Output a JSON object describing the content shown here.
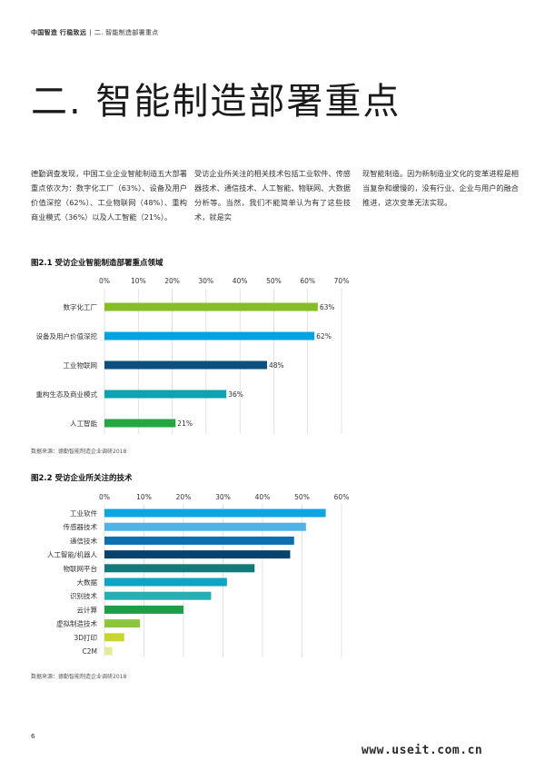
{
  "header": {
    "report": "中国智造 行稳致远",
    "separator": "|",
    "section": "二. 智能制造部署重点"
  },
  "title": "二. 智能制造部署重点",
  "paragraphs": [
    "德勤调查发现，中国工业企业智能制造五大部署重点依次为：数字化工厂（63%）、设备及用户价值深挖（62%）、工业物联网（48%）、重构商业模式（36%）以及人工智能（21%）。",
    "受访企业所关注的相关技术包括工业软件、传感器技术、通信技术、人工智能、物联网、大数据分析等。当然，我们不能简单认为有了这些技术，就是实",
    "现智能制造。因为新制造业文化的变革进程是相当复杂和缓慢的，没有行业、企业与用户的融合推进，这次变革无法实现。"
  ],
  "figures": [
    {
      "title": "图2.1 受访企业智能制造部署重点领域",
      "source": "数据来源：德勤智能制造企业调研2018"
    },
    {
      "title": "图2.2 受访企业所关注的技术",
      "source": "数据来源：德勤智能制造企业调研2018"
    }
  ],
  "chart_data": [
    {
      "type": "bar",
      "orientation": "horizontal",
      "title": "图2.1 受访企业智能制造部署重点领域",
      "categories": [
        "数字化工厂",
        "设备及用户价值深挖",
        "工业物联网",
        "重构生态及商业模式",
        "人工智能"
      ],
      "values": [
        63,
        62,
        48,
        36,
        21
      ],
      "value_labels": [
        "63%",
        "62%",
        "48%",
        "36%",
        "21%"
      ],
      "colors": [
        "#86bc25",
        "#00a3e0",
        "#0b4f7e",
        "#0fa3b1",
        "#26a641"
      ],
      "xlim": [
        0,
        70
      ],
      "xticks": [
        "0%",
        "10%",
        "20%",
        "30%",
        "40%",
        "50%",
        "60%",
        "70%"
      ],
      "grid": true,
      "legend": "none"
    },
    {
      "type": "bar",
      "orientation": "horizontal",
      "title": "图2.2 受访企业所关注的技术",
      "categories": [
        "工业软件",
        "传感器技术",
        "通信技术",
        "人工智能/机器人",
        "物联网平台",
        "大数据",
        "识别技术",
        "云计算",
        "虚拟制造技术",
        "3D打印",
        "C2M"
      ],
      "values": [
        56,
        51,
        48,
        47,
        38,
        31,
        27,
        20,
        9,
        5,
        2
      ],
      "colors": [
        "#0ea5e0",
        "#4fb3e6",
        "#0c6fb0",
        "#08426e",
        "#127a78",
        "#0ea5c4",
        "#26b0b5",
        "#1e9e47",
        "#8cc63f",
        "#c8d62b",
        "#e2ed9b"
      ],
      "xlim": [
        0,
        60
      ],
      "xticks": [
        "0%",
        "10%",
        "20%",
        "30%",
        "40%",
        "50%",
        "60%"
      ],
      "grid": true,
      "legend": "none"
    }
  ],
  "footer": {
    "page_number": "6",
    "watermark": "www.useit.com.cn"
  }
}
